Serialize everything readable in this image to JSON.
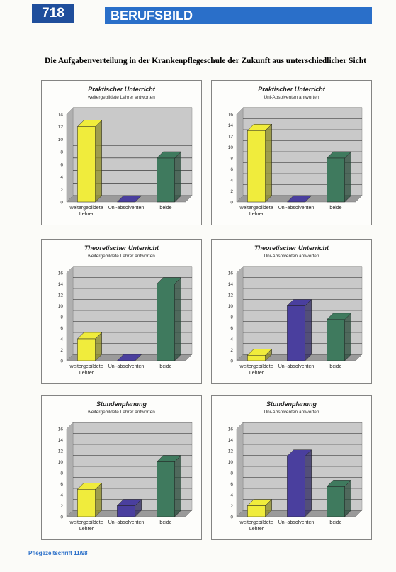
{
  "header": {
    "page_number": "718",
    "section": "BERUFSBILD"
  },
  "title": "Die Aufgabenverteilung in der Krankenpflegeschule der Zukunft aus unterschiedlicher Sicht",
  "chart_data": [
    {
      "type": "bar",
      "title": "Praktischer Unterricht",
      "subtitle": "weitergebildete Lehrer antworten",
      "categories": [
        "weitergebildete Lehrer",
        "Uni-absolventen",
        "beide"
      ],
      "values": [
        12,
        0,
        7
      ],
      "colors": [
        "#f0ec3c",
        "#4a3f9e",
        "#3f7a5e"
      ],
      "ylim": [
        0,
        14
      ],
      "yticks": [
        0,
        2,
        4,
        6,
        8,
        10,
        12,
        14
      ],
      "grid": true
    },
    {
      "type": "bar",
      "title": "Praktischer Unterricht",
      "subtitle": "Uni-Absolventen antworten",
      "categories": [
        "weitergebildete Lehrer",
        "Uni-absolventen",
        "beide"
      ],
      "values": [
        13,
        0,
        8
      ],
      "colors": [
        "#f0ec3c",
        "#4a3f9e",
        "#3f7a5e"
      ],
      "ylim": [
        0,
        16
      ],
      "yticks": [
        0,
        2,
        4,
        6,
        8,
        10,
        12,
        14,
        16
      ],
      "grid": true
    },
    {
      "type": "bar",
      "title": "Theoretischer Unterricht",
      "subtitle": "weitergebildete Lehrer antworten",
      "categories": [
        "weitergebildete Lehrer",
        "Uni-absolventen",
        "beide"
      ],
      "values": [
        4,
        0,
        14
      ],
      "colors": [
        "#f0ec3c",
        "#4a3f9e",
        "#3f7a5e"
      ],
      "ylim": [
        0,
        16
      ],
      "yticks": [
        0,
        2,
        4,
        6,
        8,
        10,
        12,
        14,
        16
      ],
      "grid": true
    },
    {
      "type": "bar",
      "title": "Theoretischer Unterricht",
      "subtitle": "Uni-Absolventen antworten",
      "categories": [
        "weitergebildete Lehrer",
        "Uni-absolventen",
        "beide"
      ],
      "values": [
        1,
        10,
        7.5
      ],
      "colors": [
        "#f0ec3c",
        "#4a3f9e",
        "#3f7a5e"
      ],
      "ylim": [
        0,
        16
      ],
      "yticks": [
        0,
        2,
        4,
        6,
        8,
        10,
        12,
        14,
        16
      ],
      "grid": true
    },
    {
      "type": "bar",
      "title": "Stundenplanung",
      "subtitle": "weitergebildete Lehrer antworten",
      "categories": [
        "weitergebildete Lehrer",
        "Uni-absolventen",
        "beide"
      ],
      "values": [
        5,
        2,
        10
      ],
      "colors": [
        "#f0ec3c",
        "#4a3f9e",
        "#3f7a5e"
      ],
      "ylim": [
        0,
        16
      ],
      "yticks": [
        0,
        2,
        4,
        6,
        8,
        10,
        12,
        14,
        16
      ],
      "grid": true
    },
    {
      "type": "bar",
      "title": "Stundenplanung",
      "subtitle": "Uni-Absolventen antworten",
      "categories": [
        "weitergebildete Lehrer",
        "Uni-absolventen",
        "beide"
      ],
      "values": [
        2,
        11,
        5.5
      ],
      "colors": [
        "#f0ec3c",
        "#4a3f9e",
        "#3f7a5e"
      ],
      "ylim": [
        0,
        16
      ],
      "yticks": [
        0,
        2,
        4,
        6,
        8,
        10,
        12,
        14,
        16
      ],
      "grid": true
    }
  ],
  "footer": "Pflegezeitschrift 11/98"
}
